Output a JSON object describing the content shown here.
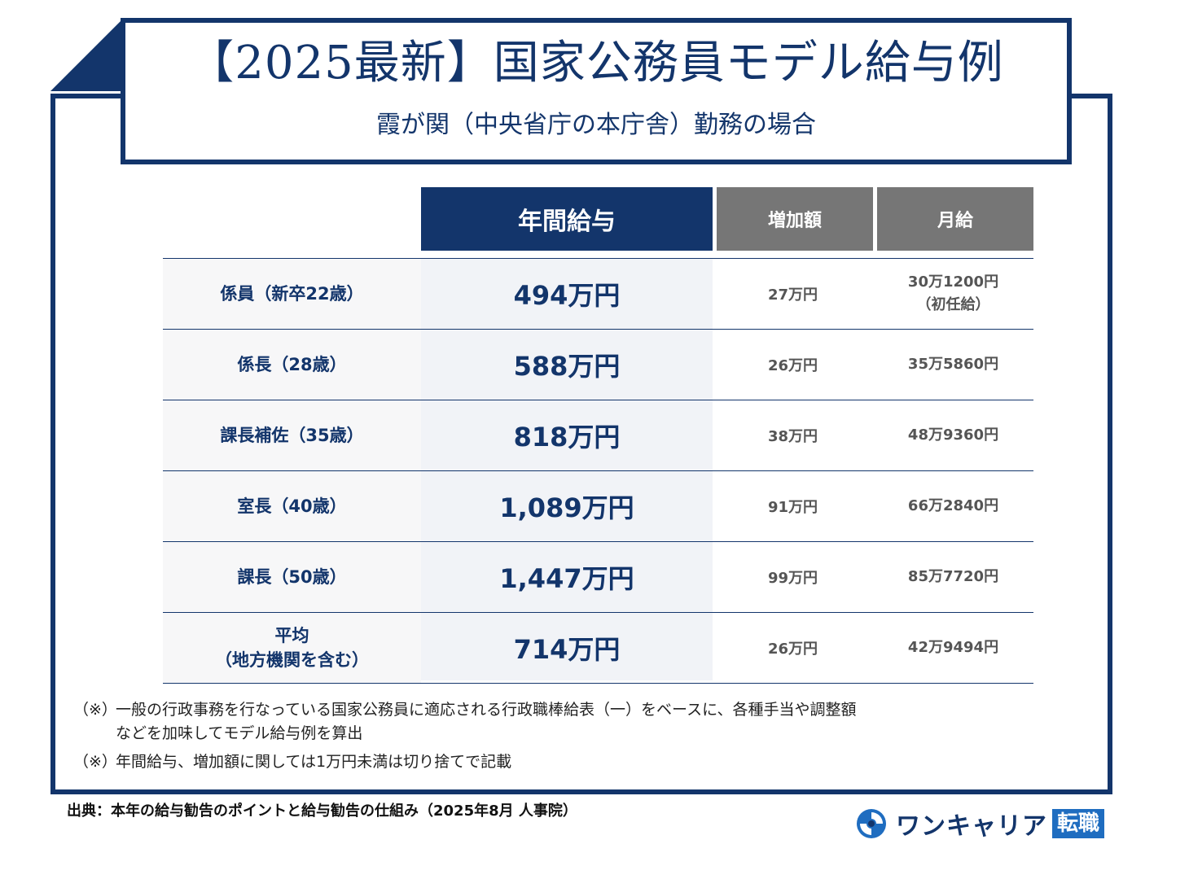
{
  "title": {
    "main": "【2025最新】国家公務員モデル給与例",
    "sub": "霞が関（中央省庁の本庁舎）勤務の場合"
  },
  "table": {
    "headers": {
      "annual": "年間給与",
      "increase": "増加額",
      "monthly": "月給"
    },
    "rows": [
      {
        "label": "係員（新卒22歳）",
        "annual": "494万円",
        "increase": "27万円",
        "monthly": "30万1200円",
        "monthly_note": "（初任給）"
      },
      {
        "label": "係長（28歳）",
        "annual": "588万円",
        "increase": "26万円",
        "monthly": "35万5860円"
      },
      {
        "label": "課長補佐（35歳）",
        "annual": "818万円",
        "increase": "38万円",
        "monthly": "48万9360円"
      },
      {
        "label": "室長（40歳）",
        "annual": "1,089万円",
        "increase": "91万円",
        "monthly": "66万2840円"
      },
      {
        "label": "課長（50歳）",
        "annual": "1,447万円",
        "increase": "99万円",
        "monthly": "85万7720円"
      },
      {
        "label": "平均",
        "label_line2": "（地方機関を含む）",
        "annual": "714万円",
        "increase": "26万円",
        "monthly": "42万9494円"
      }
    ]
  },
  "notes": [
    {
      "mark": "（※）",
      "line1": "一般の行政事務を行なっている国家公務員に適応される行政職棒給表（一）をベースに、各種手当や調整額",
      "line2": "などを加味してモデル給与例を算出"
    },
    {
      "mark": "（※）",
      "line1": "年間給与、増加額に関しては1万円未満は切り捨てで記載"
    }
  ],
  "source": "出典：本年の給与勧告のポイントと給与勧告の仕組み（2025年8月 人事院）",
  "logo": {
    "icon": "swirl-logo-icon",
    "name": "ワンキャリア",
    "badge": "転職",
    "colors": {
      "navy": "#13356b",
      "blue": "#1f6dc0"
    }
  },
  "colors": {
    "primary": "#13356b",
    "header_gray": "#767676",
    "highlight_bg": "#f1f3f7"
  }
}
